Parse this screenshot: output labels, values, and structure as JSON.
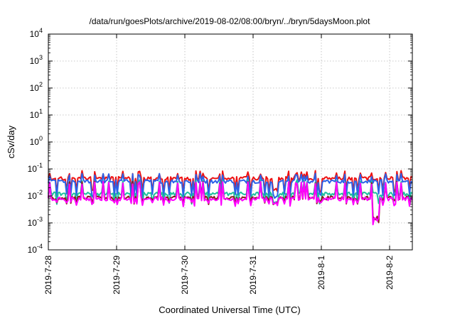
{
  "chart_data": {
    "type": "line",
    "title": "/data/run/goesPlots/archive/2019-08-02/08:00/bryn/../bryn/5daysMoon.plot",
    "xlabel": "Coordinated Universal Time (UTC)",
    "ylabel": "cSv/day",
    "yscale": "log",
    "ylim": [
      0.0001,
      10000
    ],
    "y_ticks": [
      {
        "value": 0.0001,
        "base": "10",
        "exp": "-4"
      },
      {
        "value": 0.001,
        "base": "10",
        "exp": "-3"
      },
      {
        "value": 0.01,
        "base": "10",
        "exp": "-2"
      },
      {
        "value": 0.1,
        "base": "10",
        "exp": "-1"
      },
      {
        "value": 1,
        "base": "10",
        "exp": "0"
      },
      {
        "value": 10,
        "base": "10",
        "exp": "1"
      },
      {
        "value": 100,
        "base": "10",
        "exp": "2"
      },
      {
        "value": 1000,
        "base": "10",
        "exp": "3"
      },
      {
        "value": 10000,
        "base": "10",
        "exp": "4"
      }
    ],
    "xlim": [
      "2019-07-28",
      "2019-08-02 08:00"
    ],
    "x_ticks": [
      {
        "value": "2019-07-28",
        "label": "2019-7-28"
      },
      {
        "value": "2019-07-29",
        "label": "2019-7-29"
      },
      {
        "value": "2019-07-30",
        "label": "2019-7-30"
      },
      {
        "value": "2019-07-31",
        "label": "2019-7-31"
      },
      {
        "value": "2019-08-01",
        "label": "2019-8-1"
      },
      {
        "value": "2019-08-02",
        "label": "2019-8-2"
      }
    ],
    "grid": true,
    "series_style": [
      {
        "color": "#ee1111",
        "baseline": 0.045,
        "dip": 0.016,
        "spike": 0.075
      },
      {
        "color": "#2b62e8",
        "baseline": 0.035,
        "dip": 0.01,
        "spike": 0.06
      },
      {
        "color": "#1fbf9f",
        "baseline": 0.012,
        "dip": 0.006,
        "spike": 0.035
      },
      {
        "color": "#8b1a1a",
        "baseline": 0.0085,
        "dip": 0.006,
        "spike": 0.03
      },
      {
        "color": "#ff00ff",
        "baseline": 0.0078,
        "dip": 0.005,
        "spike": 0.03
      }
    ]
  }
}
